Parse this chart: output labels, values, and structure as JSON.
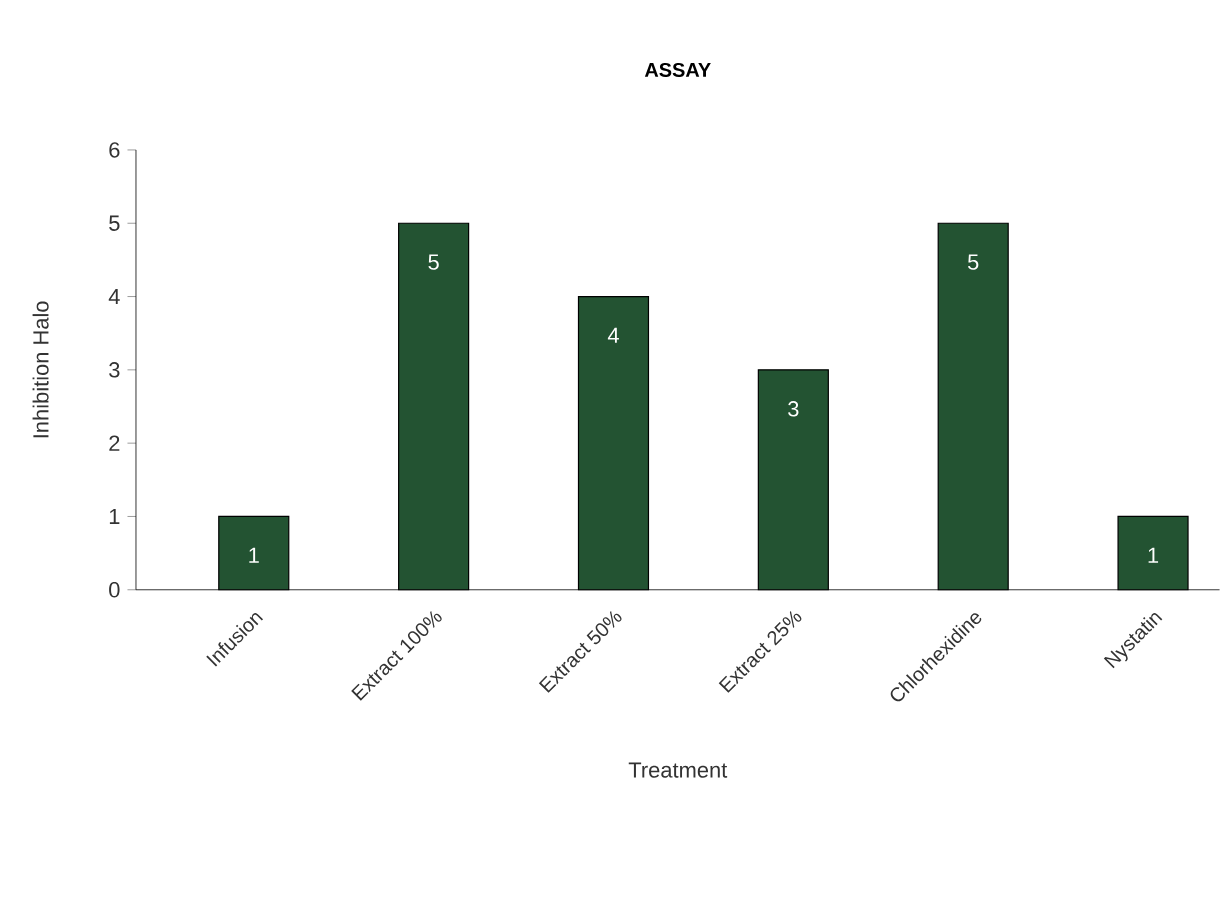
{
  "chart_data": {
    "type": "bar",
    "title": "ASSAY",
    "xlabel": "Treatment",
    "ylabel": "Inhibition Halo",
    "categories": [
      "Infusion",
      "Extract 100%",
      "Extract 50%",
      "Extract 25%",
      "Chlorhexidine",
      "Nystatin"
    ],
    "values": [
      1,
      5,
      4,
      3,
      5,
      1
    ],
    "color": "#235332",
    "ylim": [
      0,
      6
    ],
    "yticks": [
      0,
      1,
      2,
      3,
      4,
      5,
      6
    ],
    "data_labels": true
  }
}
